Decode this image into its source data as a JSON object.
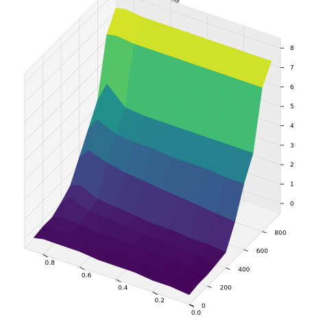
{
  "chart_data": {
    "type": "surface",
    "title": "Surface plot",
    "xlabel": "",
    "ylabel": "",
    "zlabel": "",
    "xlim": [
      0.0,
      0.9
    ],
    "ylim": [
      0,
      1000
    ],
    "zlim": [
      -0.5,
      8.5
    ],
    "grid": true,
    "colormap": "viridis",
    "x_ticks": [
      "0.8",
      "0.6",
      "0.4",
      "0.2",
      "0.0"
    ],
    "y_ticks": [
      "0",
      "200",
      "400",
      "600",
      "800"
    ],
    "z_ticks": [
      "0",
      "1",
      "2",
      "3",
      "4",
      "5",
      "6",
      "7",
      "8"
    ],
    "x": [
      0.0,
      0.1,
      0.2,
      0.3,
      0.4,
      0.5,
      0.6,
      0.7,
      0.8,
      0.85
    ],
    "y": [
      0,
      100,
      200,
      300,
      400,
      500,
      600,
      700,
      800,
      900
    ],
    "z": [
      [
        0.0,
        0.1,
        0.1,
        0.2,
        0.2,
        0.2,
        0.3,
        0.3,
        0.3,
        0.2
      ],
      [
        0.1,
        0.1,
        0.2,
        0.2,
        0.2,
        0.2,
        0.3,
        0.3,
        0.3,
        0.3
      ],
      [
        0.1,
        0.1,
        0.2,
        0.2,
        0.3,
        0.3,
        0.3,
        0.4,
        0.5,
        0.3
      ],
      [
        0.2,
        0.3,
        0.3,
        0.4,
        0.4,
        0.5,
        0.6,
        0.6,
        1.0,
        0.6
      ],
      [
        0.3,
        0.4,
        0.4,
        0.5,
        0.5,
        0.6,
        0.7,
        0.8,
        1.2,
        1.0
      ],
      [
        1.4,
        1.5,
        1.6,
        1.7,
        1.8,
        1.9,
        2.0,
        2.2,
        2.5,
        2.0
      ],
      [
        2.9,
        2.9,
        3.0,
        3.0,
        3.0,
        3.1,
        3.1,
        3.2,
        3.6,
        3.0
      ],
      [
        4.0,
        4.0,
        4.0,
        4.0,
        4.0,
        4.0,
        4.0,
        4.1,
        5.0,
        4.0
      ],
      [
        6.9,
        6.9,
        6.9,
        6.9,
        6.9,
        6.9,
        6.9,
        6.9,
        7.0,
        6.9
      ],
      [
        7.8,
        7.8,
        7.8,
        7.8,
        7.8,
        7.8,
        7.8,
        7.8,
        7.9,
        7.8
      ]
    ]
  }
}
